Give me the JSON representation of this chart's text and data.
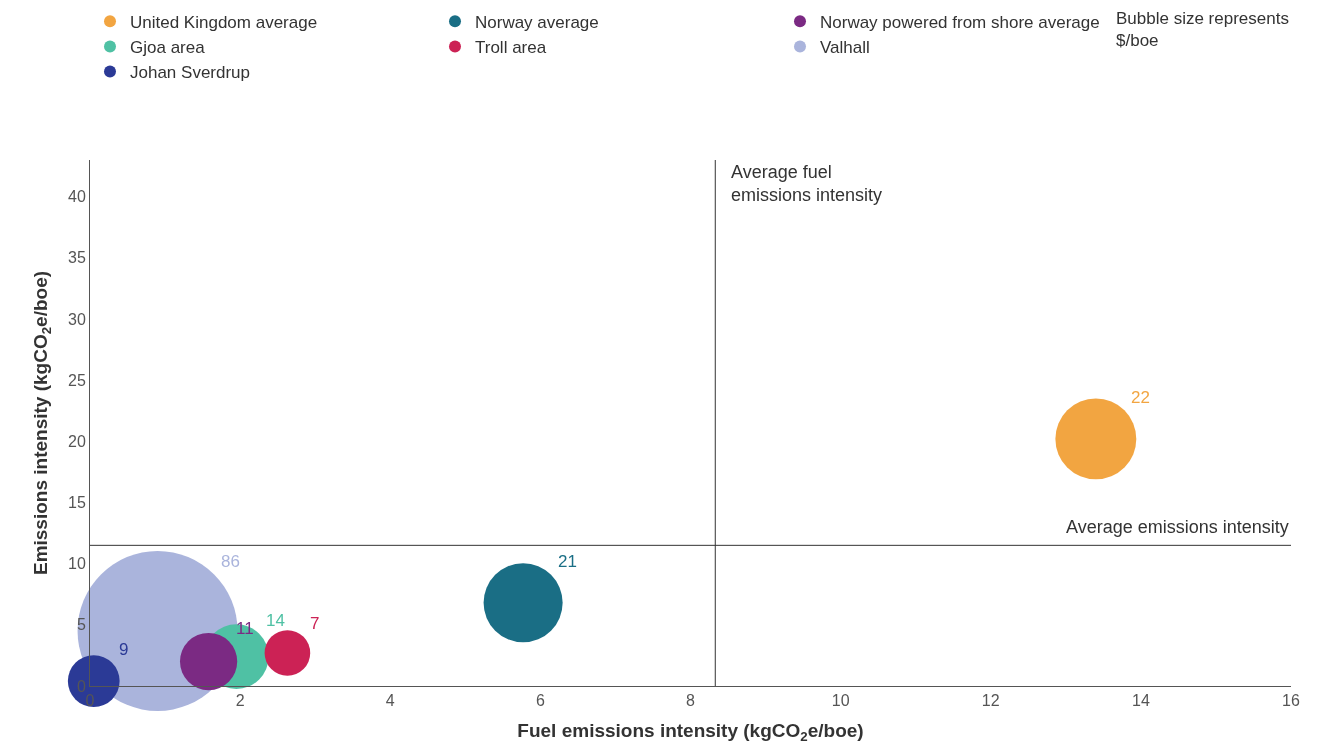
{
  "chart_data": {
    "type": "bubble",
    "xlabel": "Fuel emissions intensity (kgCO$_{2}$e/boe)",
    "ylabel": "Emissions intensity (kgCO$_{2}$e/boe)",
    "xlim": [
      0,
      16
    ],
    "xticks": [
      0,
      2,
      4,
      6,
      8,
      10,
      12,
      14,
      16
    ],
    "ylim": [
      0,
      43
    ],
    "yticks": [
      0,
      5,
      10,
      15,
      20,
      25,
      30,
      35,
      40
    ],
    "legend": "top",
    "series": [
      {
        "name": "United Kingdom average",
        "color": "#f2a541",
        "x": [
          13.4
        ],
        "values": [
          20.2
        ],
        "sizes": [
          22
        ],
        "value_labels": [
          "22"
        ]
      },
      {
        "name": "Norway average",
        "color": "#1a6e85",
        "x": [
          5.77
        ],
        "values": [
          6.8
        ],
        "sizes": [
          21
        ],
        "value_labels": [
          "21"
        ]
      },
      {
        "name": "Norway powered from shore average",
        "color": "#7b2a83",
        "x": [
          1.58
        ],
        "values": [
          2.0
        ],
        "sizes": [
          11
        ],
        "value_labels": [
          "11"
        ]
      },
      {
        "name": "Gjoa area",
        "color": "#4fc1a4",
        "x": [
          1.95
        ],
        "values": [
          2.4
        ],
        "sizes": [
          14
        ],
        "value_labels": [
          "14"
        ]
      },
      {
        "name": "Troll area",
        "color": "#cc2255",
        "x": [
          2.63
        ],
        "values": [
          2.7
        ],
        "sizes": [
          7
        ],
        "value_labels": [
          "7"
        ]
      },
      {
        "name": "Valhall",
        "color": "#aab4dc",
        "x": [
          0.9
        ],
        "values": [
          4.5
        ],
        "sizes": [
          86
        ],
        "value_labels": [
          "86"
        ]
      },
      {
        "name": "Johan Sverdrup",
        "color": "#2b3a96",
        "x": [
          0.05
        ],
        "values": [
          0.4
        ],
        "sizes": [
          9
        ],
        "value_labels": [
          "9"
        ]
      }
    ],
    "ref_lines": [
      {
        "axis": "x",
        "value": 8.33,
        "label": "Average fuel emissions intensity",
        "color": "#333333"
      },
      {
        "axis": "y",
        "value": 11.5,
        "label": "Average emissions intensity",
        "color": "#333333"
      }
    ],
    "annotations": [
      "Bubble size represents $/boe"
    ]
  }
}
